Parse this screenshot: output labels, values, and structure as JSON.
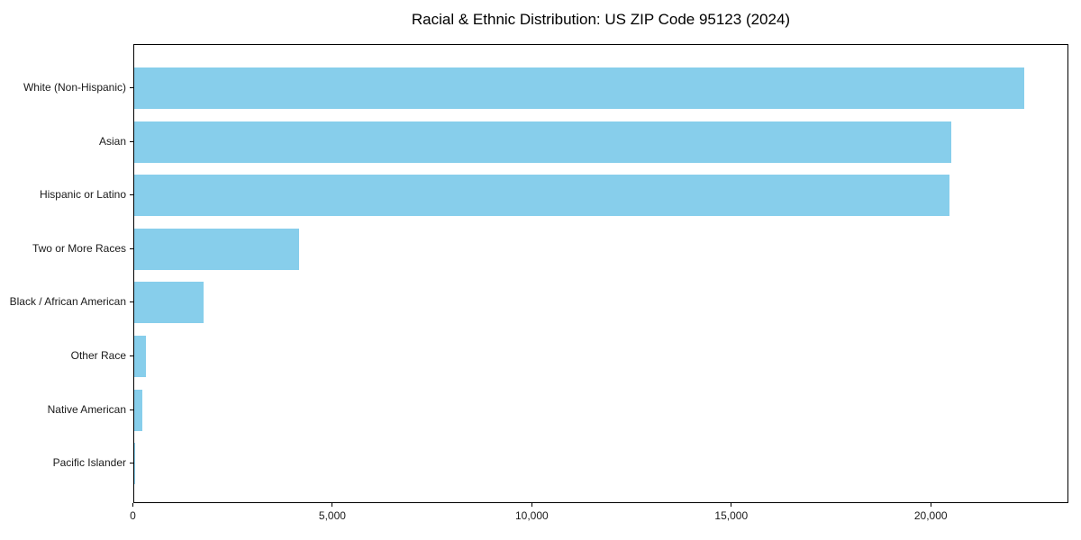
{
  "page": {
    "background": "#ffffff"
  },
  "chart_data": {
    "type": "bar",
    "orientation": "horizontal",
    "title": "Racial & Ethnic Distribution: US ZIP Code 95123 (2024)",
    "categories": [
      "White (Non-Hispanic)",
      "Asian",
      "Hispanic or Latino",
      "Two or More Races",
      "Black / African American",
      "Other Race",
      "Native American",
      "Pacific Islander"
    ],
    "values": [
      22330,
      20500,
      20450,
      4140,
      1760,
      310,
      210,
      20
    ],
    "xlabel": "",
    "ylabel": "",
    "xlim": [
      0,
      23450
    ],
    "x_ticks": [
      0,
      5000,
      10000,
      15000,
      20000
    ],
    "x_tick_labels": [
      "0",
      "5,000",
      "10,000",
      "15,000",
      "20,000"
    ],
    "bar_color": "#87CEEB",
    "axis_color": "#000000",
    "text_color": "#1a1a1a",
    "grid": false,
    "legend": "none"
  }
}
